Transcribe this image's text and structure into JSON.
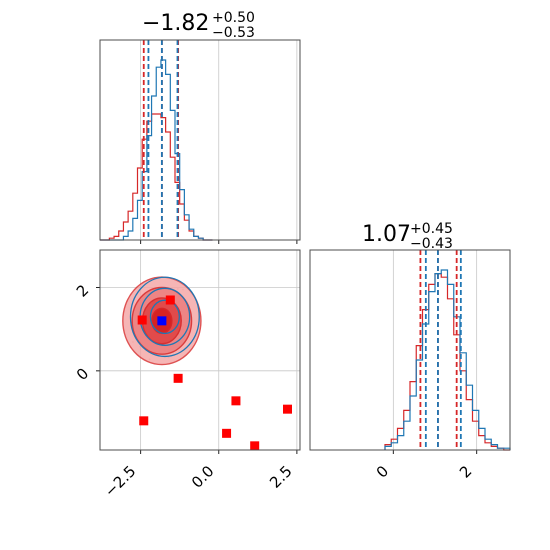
{
  "chart_data": {
    "type": "corner",
    "parameters": [
      {
        "title_value": "−1.82",
        "title_plus": "+0.50",
        "title_minus": "−0.53",
        "xlim": [
          -3.8,
          2.6
        ],
        "ticks": [
          -2.5,
          0.0,
          2.5
        ],
        "tick_labels": [
          "−2.5",
          "0.0",
          "2.5"
        ],
        "quantiles": {
          "blue": [
            -2.25,
            -1.82,
            -1.32
          ],
          "red": [
            -2.4,
            -1.82,
            -1.3
          ]
        }
      },
      {
        "title_value": "1.07",
        "title_plus": "+0.45",
        "title_minus": "−0.43",
        "xlim": [
          -2.0,
          2.8
        ],
        "ticks": [
          0,
          2
        ],
        "tick_labels": [
          "0",
          "2"
        ],
        "quantiles": {
          "blue": [
            0.78,
            1.07,
            1.62
          ],
          "red": [
            0.65,
            1.07,
            1.52
          ]
        }
      }
    ],
    "joint": {
      "xlim": [
        -3.8,
        2.6
      ],
      "ylim": [
        -1.9,
        2.9
      ],
      "yticks": [
        0,
        2
      ],
      "ytick_labels": [
        "0",
        "2"
      ],
      "marker_blue": [
        -1.82,
        1.2
      ],
      "markers_red": [
        [
          -2.45,
          1.22
        ],
        [
          -1.55,
          1.7
        ],
        [
          -1.3,
          -0.18
        ],
        [
          -2.4,
          -1.2
        ],
        [
          0.25,
          -1.5
        ],
        [
          0.55,
          -0.72
        ],
        [
          1.15,
          -1.8
        ],
        [
          2.2,
          -0.92
        ]
      ]
    },
    "hist_bins": [
      -3.8,
      -3.65,
      -3.5,
      -3.35,
      -3.2,
      -3.05,
      -2.9,
      -2.75,
      -2.6,
      -2.45,
      -2.3,
      -2.15,
      -2.0,
      -1.85,
      -1.7,
      -1.55,
      -1.4,
      -1.25,
      -1.1,
      -0.95,
      -0.8,
      -0.65,
      -0.5,
      -0.35,
      -0.2
    ],
    "hist1_blue": [
      0,
      0,
      0,
      0,
      0,
      0.02,
      0.05,
      0.12,
      0.22,
      0.38,
      0.58,
      0.8,
      0.96,
      1.0,
      0.92,
      0.72,
      0.48,
      0.28,
      0.14,
      0.06,
      0.02,
      0.01,
      0,
      0
    ],
    "hist1_red": [
      0,
      0,
      0.01,
      0.02,
      0.05,
      0.1,
      0.16,
      0.26,
      0.4,
      0.56,
      0.66,
      0.7,
      0.7,
      0.68,
      0.6,
      0.46,
      0.32,
      0.2,
      0.11,
      0.05,
      0.02,
      0.01,
      0,
      0
    ],
    "hist2_bins": [
      -0.2,
      -0.05,
      0.1,
      0.25,
      0.4,
      0.55,
      0.7,
      0.85,
      1.0,
      1.15,
      1.3,
      1.45,
      1.6,
      1.75,
      1.9,
      2.05,
      2.2,
      2.35,
      2.5,
      2.65,
      2.8
    ],
    "hist2_blue": [
      0.02,
      0.04,
      0.08,
      0.16,
      0.3,
      0.5,
      0.7,
      0.88,
      0.98,
      1.0,
      0.92,
      0.74,
      0.54,
      0.36,
      0.22,
      0.12,
      0.06,
      0.03,
      0.01,
      0.01
    ],
    "hist2_red": [
      0.03,
      0.06,
      0.12,
      0.22,
      0.38,
      0.58,
      0.78,
      0.92,
      0.98,
      0.96,
      0.84,
      0.64,
      0.44,
      0.28,
      0.16,
      0.08,
      0.04,
      0.02,
      0.01,
      0
    ]
  },
  "colors": {
    "blue": "#1f77b4",
    "red": "#d62728",
    "marker_blue": "#0000ff",
    "marker_red": "#ff0000",
    "fill_red": "#f08080"
  }
}
